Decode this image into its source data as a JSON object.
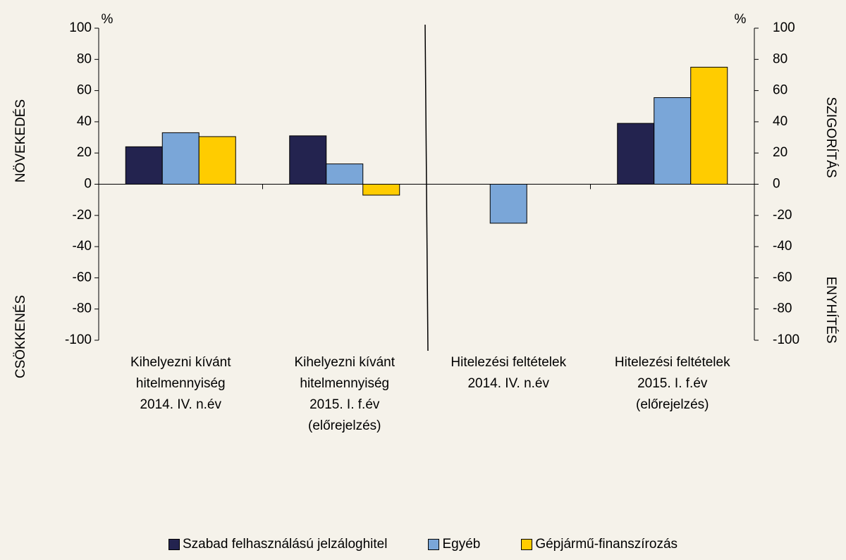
{
  "chart_data": {
    "type": "bar",
    "categories": [
      "Kihelyezni kívánt\nhitelmennyiség\n2014. IV. n.év",
      "Kihelyezni kívánt\nhitelmennyiség\n2015. I. f.év\n(előrejelzés)",
      "Hitelezési feltételek\n2014. IV. n.év",
      "Hitelezési feltételek\n2015. I. f.év\n(előrejelzés)"
    ],
    "series": [
      {
        "name": "Szabad felhasználású jelzáloghitel",
        "color": "#23234f",
        "values": [
          24,
          31,
          0,
          39
        ]
      },
      {
        "name": "Egyéb",
        "color": "#7aa6d8",
        "values": [
          33,
          13,
          -25,
          55.5
        ]
      },
      {
        "name": "Gépjármű-finanszírozás",
        "color": "#ffcc00",
        "values": [
          30.5,
          -7,
          0,
          75
        ]
      }
    ],
    "ylim": [
      -100,
      100
    ],
    "yticks": [
      -100,
      -80,
      -60,
      -40,
      -20,
      0,
      20,
      40,
      60,
      80,
      100
    ],
    "y2lim": [
      -100,
      100
    ],
    "y2ticks": [
      -100,
      -80,
      -60,
      -40,
      -20,
      0,
      20,
      40,
      60,
      80,
      100
    ],
    "y_unit": "%",
    "y2_unit": "%",
    "y_label_top": "NÖVEKEDÉS",
    "y_label_bottom": "CSÖKKENÉS",
    "y2_label_top": "SZIGORÍTÁS",
    "y2_label_bottom": "ENYHÍTÉS"
  }
}
